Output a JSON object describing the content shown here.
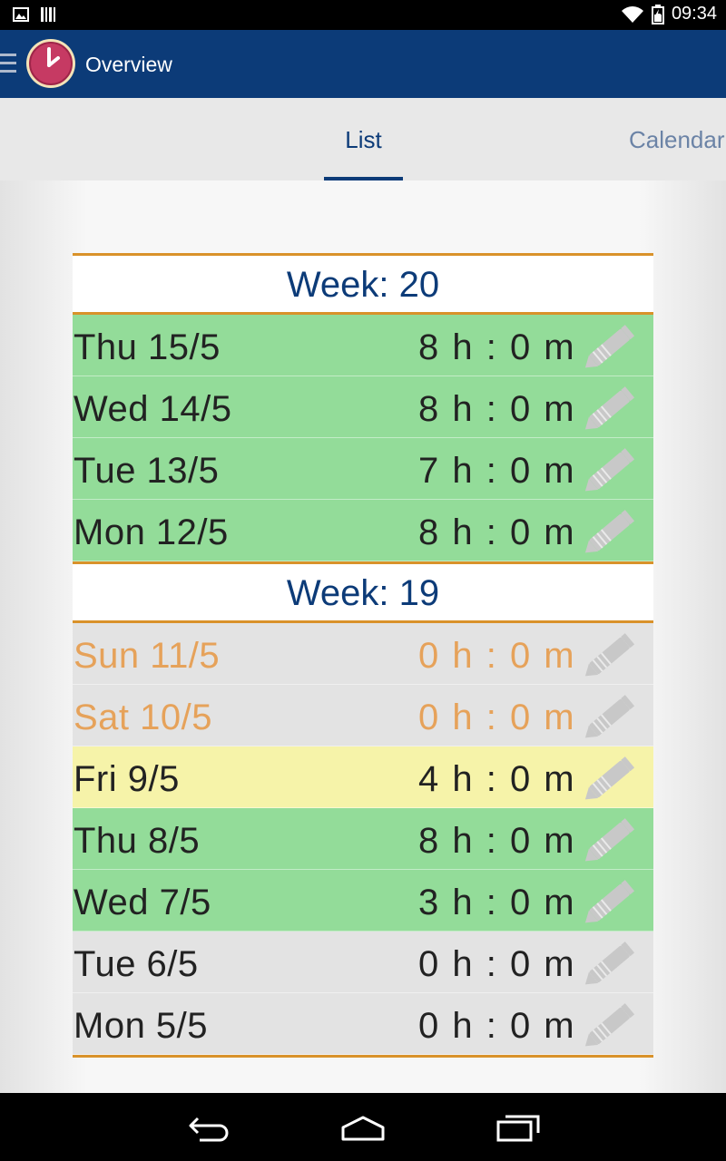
{
  "status_bar": {
    "time": "09:34",
    "icons": [
      "gallery-icon",
      "barcode-icon",
      "wifi-icon",
      "battery-icon"
    ]
  },
  "action_bar": {
    "title": "Overview",
    "logo": "clock-logo-icon",
    "menu_icon": "hamburger-menu-icon"
  },
  "tabs": [
    {
      "label": "List",
      "selected": true
    },
    {
      "label": "Calendar",
      "selected": false
    }
  ],
  "colors": {
    "primary": "#0c3b78",
    "accent": "#d9922a",
    "full_day": "#93dc99",
    "partial_day": "#f6f3a9",
    "empty_day": "#e3e3e3",
    "weekend_text": "#e6a25a"
  },
  "weeks": [
    {
      "label": "Week: 20",
      "days": [
        {
          "label": "Thu 15/5",
          "hours": "8 h : 0 m",
          "status": "green"
        },
        {
          "label": "Wed 14/5",
          "hours": "8 h : 0 m",
          "status": "green"
        },
        {
          "label": "Tue 13/5",
          "hours": "7 h : 0 m",
          "status": "green"
        },
        {
          "label": "Mon 12/5",
          "hours": "8 h : 0 m",
          "status": "green"
        }
      ]
    },
    {
      "label": "Week: 19",
      "days": [
        {
          "label": "Sun 11/5",
          "hours": "0 h : 0 m",
          "status": "weekend"
        },
        {
          "label": "Sat 10/5",
          "hours": "0 h : 0 m",
          "status": "weekend"
        },
        {
          "label": "Fri 9/5",
          "hours": "4 h : 0 m",
          "status": "yellow"
        },
        {
          "label": "Thu 8/5",
          "hours": "8 h : 0 m",
          "status": "green"
        },
        {
          "label": "Wed 7/5",
          "hours": "3 h : 0 m",
          "status": "green"
        },
        {
          "label": "Tue 6/5",
          "hours": "0 h : 0 m",
          "status": "grey"
        },
        {
          "label": "Mon 5/5",
          "hours": "0 h : 0 m",
          "status": "grey"
        }
      ]
    }
  ],
  "nav_bar": {
    "buttons": [
      "back-icon",
      "home-icon",
      "recent-apps-icon"
    ]
  }
}
